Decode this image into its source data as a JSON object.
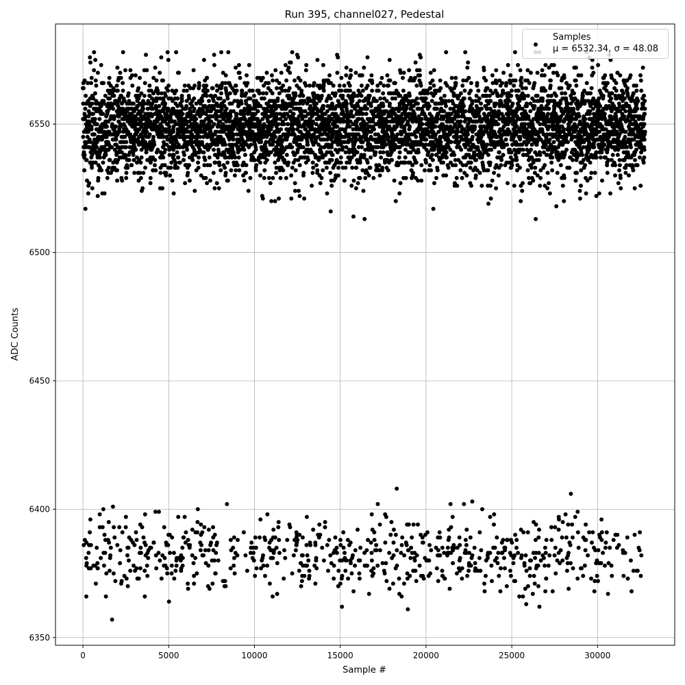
{
  "chart_data": {
    "type": "scatter",
    "title": "Run 395, channel027, Pedestal",
    "xlabel": "Sample #",
    "ylabel": "ADC Counts",
    "xlim": [
      -1600,
      34500
    ],
    "ylim": [
      6347,
      6589
    ],
    "xticks": [
      0,
      5000,
      10000,
      15000,
      20000,
      25000,
      30000
    ],
    "yticks": [
      6350,
      6400,
      6450,
      6500,
      6550
    ],
    "grid": true,
    "legend_position": "top-right",
    "series": [
      {
        "name": "Samples",
        "label_text": "μ = 6532.34, σ = 48.08",
        "color": "#000000",
        "marker": "dot",
        "x_range": [
          0,
          32767
        ],
        "clusters": [
          {
            "center": 6549,
            "min": 6513,
            "max": 6578,
            "fraction": 0.88
          },
          {
            "center": 6382,
            "min": 6357,
            "max": 6408,
            "fraction": 0.12
          }
        ],
        "mean": 6532.34,
        "std": 48.08
      }
    ]
  }
}
